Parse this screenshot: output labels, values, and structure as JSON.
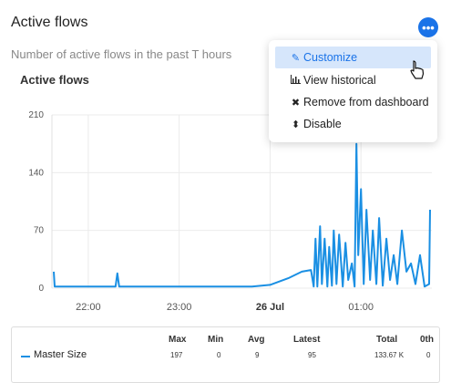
{
  "header": {
    "title": "Active flows",
    "subtitle": "Number of active flows in the past T hours",
    "menu_icon": "ellipsis-icon"
  },
  "menu": {
    "items": [
      {
        "label": "Customize",
        "icon": "edit-icon",
        "active": true
      },
      {
        "label": "View historical",
        "icon": "bar-chart-icon",
        "active": false
      },
      {
        "label": "Remove from dashboard",
        "icon": "close-icon",
        "active": false
      },
      {
        "label": "Disable",
        "icon": "sort-icon",
        "active": false
      }
    ]
  },
  "chart_data": {
    "type": "line",
    "title": "Active flows",
    "y_ticks": [
      "0",
      "70",
      "140",
      "210"
    ],
    "ylim": [
      0,
      210
    ],
    "x_ticks": [
      "22:00",
      "23:00",
      "26 Jul",
      "01:00"
    ],
    "grid": true,
    "series": [
      {
        "name": "Master Size",
        "color": "#1a8fe3",
        "points": [
          [
            21.62,
            20
          ],
          [
            21.63,
            2
          ],
          [
            22.0,
            2
          ],
          [
            22.3,
            2
          ],
          [
            22.32,
            18
          ],
          [
            22.34,
            2
          ],
          [
            22.5,
            2
          ],
          [
            23.0,
            2
          ],
          [
            23.5,
            2
          ],
          [
            23.8,
            2
          ],
          [
            24.0,
            4
          ],
          [
            24.2,
            12
          ],
          [
            24.35,
            20
          ],
          [
            24.45,
            22
          ],
          [
            24.48,
            2
          ],
          [
            24.5,
            60
          ],
          [
            24.52,
            2
          ],
          [
            24.55,
            75
          ],
          [
            24.57,
            5
          ],
          [
            24.6,
            60
          ],
          [
            24.63,
            2
          ],
          [
            24.65,
            50
          ],
          [
            24.68,
            3
          ],
          [
            24.7,
            70
          ],
          [
            24.73,
            5
          ],
          [
            24.76,
            65
          ],
          [
            24.8,
            2
          ],
          [
            24.83,
            55
          ],
          [
            24.86,
            10
          ],
          [
            24.9,
            30
          ],
          [
            24.93,
            2
          ],
          [
            24.95,
            175
          ],
          [
            24.97,
            40
          ],
          [
            25.0,
            120
          ],
          [
            25.03,
            5
          ],
          [
            25.06,
            95
          ],
          [
            25.1,
            10
          ],
          [
            25.13,
            70
          ],
          [
            25.17,
            5
          ],
          [
            25.2,
            85
          ],
          [
            25.24,
            3
          ],
          [
            25.28,
            60
          ],
          [
            25.32,
            10
          ],
          [
            25.36,
            40
          ],
          [
            25.4,
            5
          ],
          [
            25.45,
            70
          ],
          [
            25.5,
            20
          ],
          [
            25.55,
            30
          ],
          [
            25.6,
            5
          ],
          [
            25.65,
            40
          ],
          [
            25.7,
            2
          ],
          [
            25.75,
            5
          ],
          [
            25.76,
            95
          ]
        ]
      }
    ]
  },
  "legend": {
    "headers": [
      "Max",
      "Min",
      "Avg",
      "Latest",
      "Total",
      "0th"
    ],
    "rows": [
      {
        "name": "Master Size",
        "values": [
          "197",
          "0",
          "9",
          "95",
          "133.67 K",
          "0"
        ]
      }
    ]
  }
}
